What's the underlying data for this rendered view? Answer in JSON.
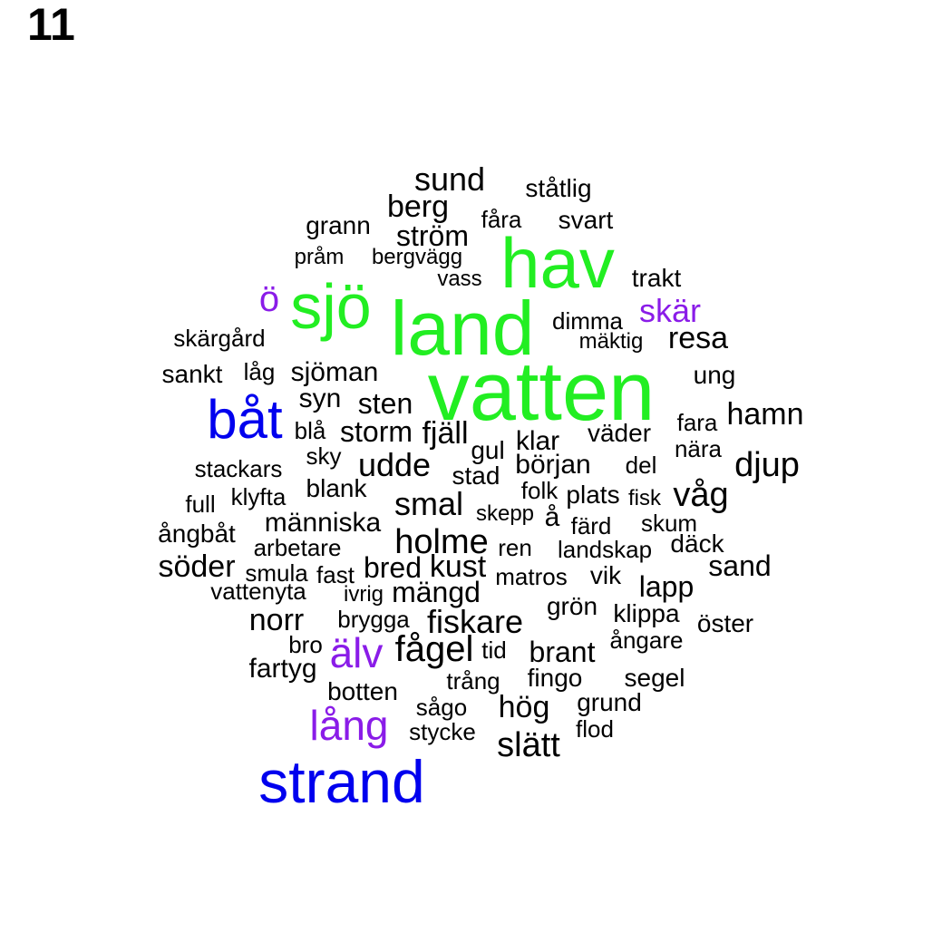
{
  "panel_label": "11",
  "colors": {
    "green": "#22ee22",
    "blue": "#0000ee",
    "purple": "#8a1ce8",
    "black": "#000000"
  },
  "words": [
    {
      "text": "vatten",
      "color": "green"
    },
    {
      "text": "land",
      "color": "green"
    },
    {
      "text": "hav",
      "color": "green"
    },
    {
      "text": "sjö",
      "color": "green"
    },
    {
      "text": "strand",
      "color": "blue"
    },
    {
      "text": "båt",
      "color": "blue"
    },
    {
      "text": "älv",
      "color": "purple"
    },
    {
      "text": "lång",
      "color": "purple"
    },
    {
      "text": "ö",
      "color": "purple"
    },
    {
      "text": "skär",
      "color": "purple"
    },
    {
      "text": "sund",
      "color": "black"
    },
    {
      "text": "ståtlig",
      "color": "black"
    },
    {
      "text": "berg",
      "color": "black"
    },
    {
      "text": "fåra",
      "color": "black"
    },
    {
      "text": "svart",
      "color": "black"
    },
    {
      "text": "grann",
      "color": "black"
    },
    {
      "text": "ström",
      "color": "black"
    },
    {
      "text": "pråm",
      "color": "black"
    },
    {
      "text": "bergvägg",
      "color": "black"
    },
    {
      "text": "vass",
      "color": "black"
    },
    {
      "text": "trakt",
      "color": "black"
    },
    {
      "text": "dimma",
      "color": "black"
    },
    {
      "text": "mäktig",
      "color": "black"
    },
    {
      "text": "resa",
      "color": "black"
    },
    {
      "text": "skärgård",
      "color": "black"
    },
    {
      "text": "sankt",
      "color": "black"
    },
    {
      "text": "låg",
      "color": "black"
    },
    {
      "text": "sjöman",
      "color": "black"
    },
    {
      "text": "ung",
      "color": "black"
    },
    {
      "text": "syn",
      "color": "black"
    },
    {
      "text": "sten",
      "color": "black"
    },
    {
      "text": "fara",
      "color": "black"
    },
    {
      "text": "hamn",
      "color": "black"
    },
    {
      "text": "blå",
      "color": "black"
    },
    {
      "text": "storm",
      "color": "black"
    },
    {
      "text": "fjäll",
      "color": "black"
    },
    {
      "text": "väder",
      "color": "black"
    },
    {
      "text": "klar",
      "color": "black"
    },
    {
      "text": "gul",
      "color": "black"
    },
    {
      "text": "nära",
      "color": "black"
    },
    {
      "text": "sky",
      "color": "black"
    },
    {
      "text": "stackars",
      "color": "black"
    },
    {
      "text": "udde",
      "color": "black"
    },
    {
      "text": "stad",
      "color": "black"
    },
    {
      "text": "början",
      "color": "black"
    },
    {
      "text": "del",
      "color": "black"
    },
    {
      "text": "djup",
      "color": "black"
    },
    {
      "text": "blank",
      "color": "black"
    },
    {
      "text": "klyfta",
      "color": "black"
    },
    {
      "text": "full",
      "color": "black"
    },
    {
      "text": "smal",
      "color": "black"
    },
    {
      "text": "folk",
      "color": "black"
    },
    {
      "text": "plats",
      "color": "black"
    },
    {
      "text": "fisk",
      "color": "black"
    },
    {
      "text": "våg",
      "color": "black"
    },
    {
      "text": "skepp",
      "color": "black"
    },
    {
      "text": "å",
      "color": "black"
    },
    {
      "text": "färd",
      "color": "black"
    },
    {
      "text": "skum",
      "color": "black"
    },
    {
      "text": "människa",
      "color": "black"
    },
    {
      "text": "ångbåt",
      "color": "black"
    },
    {
      "text": "holme",
      "color": "black"
    },
    {
      "text": "arbetare",
      "color": "black"
    },
    {
      "text": "ren",
      "color": "black"
    },
    {
      "text": "landskap",
      "color": "black"
    },
    {
      "text": "däck",
      "color": "black"
    },
    {
      "text": "söder",
      "color": "black"
    },
    {
      "text": "bred",
      "color": "black"
    },
    {
      "text": "kust",
      "color": "black"
    },
    {
      "text": "sand",
      "color": "black"
    },
    {
      "text": "smula",
      "color": "black"
    },
    {
      "text": "fast",
      "color": "black"
    },
    {
      "text": "matros",
      "color": "black"
    },
    {
      "text": "vik",
      "color": "black"
    },
    {
      "text": "vattenyta",
      "color": "black"
    },
    {
      "text": "ivrig",
      "color": "black"
    },
    {
      "text": "mängd",
      "color": "black"
    },
    {
      "text": "lapp",
      "color": "black"
    },
    {
      "text": "grön",
      "color": "black"
    },
    {
      "text": "norr",
      "color": "black"
    },
    {
      "text": "brygga",
      "color": "black"
    },
    {
      "text": "fiskare",
      "color": "black"
    },
    {
      "text": "klippa",
      "color": "black"
    },
    {
      "text": "öster",
      "color": "black"
    },
    {
      "text": "bro",
      "color": "black"
    },
    {
      "text": "ångare",
      "color": "black"
    },
    {
      "text": "fågel",
      "color": "black"
    },
    {
      "text": "tid",
      "color": "black"
    },
    {
      "text": "brant",
      "color": "black"
    },
    {
      "text": "fartyg",
      "color": "black"
    },
    {
      "text": "fingo",
      "color": "black"
    },
    {
      "text": "trång",
      "color": "black"
    },
    {
      "text": "segel",
      "color": "black"
    },
    {
      "text": "botten",
      "color": "black"
    },
    {
      "text": "grund",
      "color": "black"
    },
    {
      "text": "sågo",
      "color": "black"
    },
    {
      "text": "hög",
      "color": "black"
    },
    {
      "text": "stycke",
      "color": "black"
    },
    {
      "text": "flod",
      "color": "black"
    },
    {
      "text": "slätt",
      "color": "black"
    }
  ]
}
